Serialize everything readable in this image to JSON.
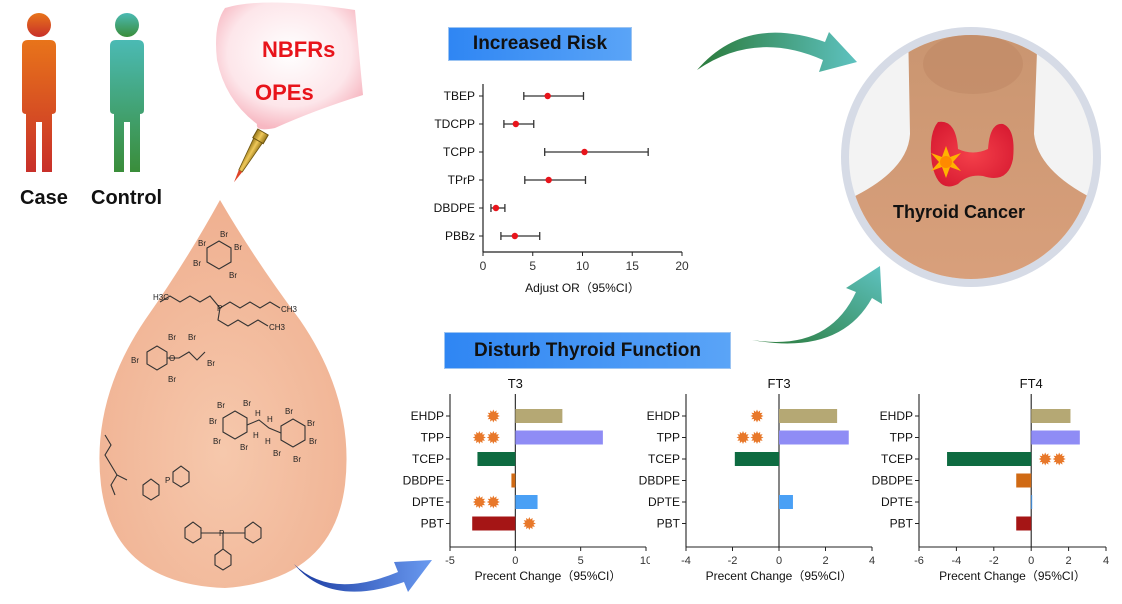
{
  "left_panel": {
    "case_label": "Case",
    "control_label": "Control",
    "spray_labels": [
      "NBFRs",
      "OPEs"
    ],
    "case_color": "#d9531e",
    "control_color": "#3aa07a"
  },
  "molecules": {
    "labels": [
      "Br",
      "H3C",
      "CH3",
      "O",
      "P",
      "H"
    ]
  },
  "increased_risk": {
    "title": "Increased Risk"
  },
  "disturb": {
    "title": "Disturb Thyroid Function"
  },
  "thyroid": {
    "label": "Thyroid Cancer"
  },
  "chart_data": [
    {
      "type": "forest",
      "title": "",
      "xlabel": "Adjust OR（95%CI）",
      "xlim": [
        0,
        20
      ],
      "xticks": [
        0,
        5,
        10,
        15,
        20
      ],
      "categories": [
        "TBEP",
        "TDCPP",
        "TCPP",
        "TPrP",
        "DBDPE",
        "PBBz"
      ],
      "estimates": [
        6.5,
        3.3,
        10.2,
        6.6,
        1.3,
        3.2
      ],
      "ci_low": [
        4.1,
        2.1,
        6.2,
        4.2,
        0.8,
        1.8
      ],
      "ci_high": [
        10.1,
        5.1,
        16.6,
        10.3,
        2.2,
        5.7
      ],
      "marker_color": "#e8141b"
    },
    {
      "type": "bar",
      "orientation": "horizontal",
      "title": "T3",
      "xlabel": "Precent Change（95%CI）",
      "xlim": [
        -5,
        10
      ],
      "xticks": [
        -5,
        0,
        5,
        10
      ],
      "categories": [
        "EHDP",
        "TPP",
        "TCEP",
        "DBDPE",
        "DPTE",
        "PBT"
      ],
      "values": [
        3.6,
        6.7,
        -2.9,
        -0.3,
        1.7,
        -3.3
      ],
      "significance": [
        1,
        2,
        0,
        0,
        2,
        1
      ],
      "significance_side": [
        "left",
        "left",
        "left",
        "left",
        "left",
        "right"
      ]
    },
    {
      "type": "bar",
      "orientation": "horizontal",
      "title": "FT3",
      "xlabel": "Precent Change（95%CI）",
      "xlim": [
        -4,
        4
      ],
      "xticks": [
        -4,
        -2,
        0,
        2,
        4
      ],
      "categories": [
        "EHDP",
        "TPP",
        "TCEP",
        "DBDPE",
        "DPTE",
        "PBT"
      ],
      "values": [
        2.5,
        3.0,
        -1.9,
        0,
        0.6,
        0
      ],
      "significance": [
        1,
        2,
        0,
        0,
        0,
        0
      ],
      "significance_side": [
        "left",
        "left",
        "left",
        "left",
        "left",
        "left"
      ]
    },
    {
      "type": "bar",
      "orientation": "horizontal",
      "title": "FT4",
      "xlabel": "Precent Change（95%CI）",
      "xlim": [
        -6,
        4
      ],
      "xticks": [
        -6,
        -4,
        -2,
        0,
        2,
        4
      ],
      "categories": [
        "EHDP",
        "TPP",
        "TCEP",
        "DBDPE",
        "DPTE",
        "PBT"
      ],
      "values": [
        2.1,
        2.6,
        -4.5,
        -0.8,
        0.02,
        -0.8
      ],
      "significance": [
        0,
        0,
        2,
        0,
        0,
        0
      ],
      "significance_side": [
        "right",
        "right",
        "right",
        "right",
        "right",
        "right"
      ]
    }
  ],
  "bar_colors": {
    "EHDP": "#b5a874",
    "TPP": "#8f8cf5",
    "TCEP": "#0e6b41",
    "DBDPE": "#d06a14",
    "DPTE": "#4aa0f5",
    "PBT": "#a51515"
  },
  "star_color": "#e8782a"
}
